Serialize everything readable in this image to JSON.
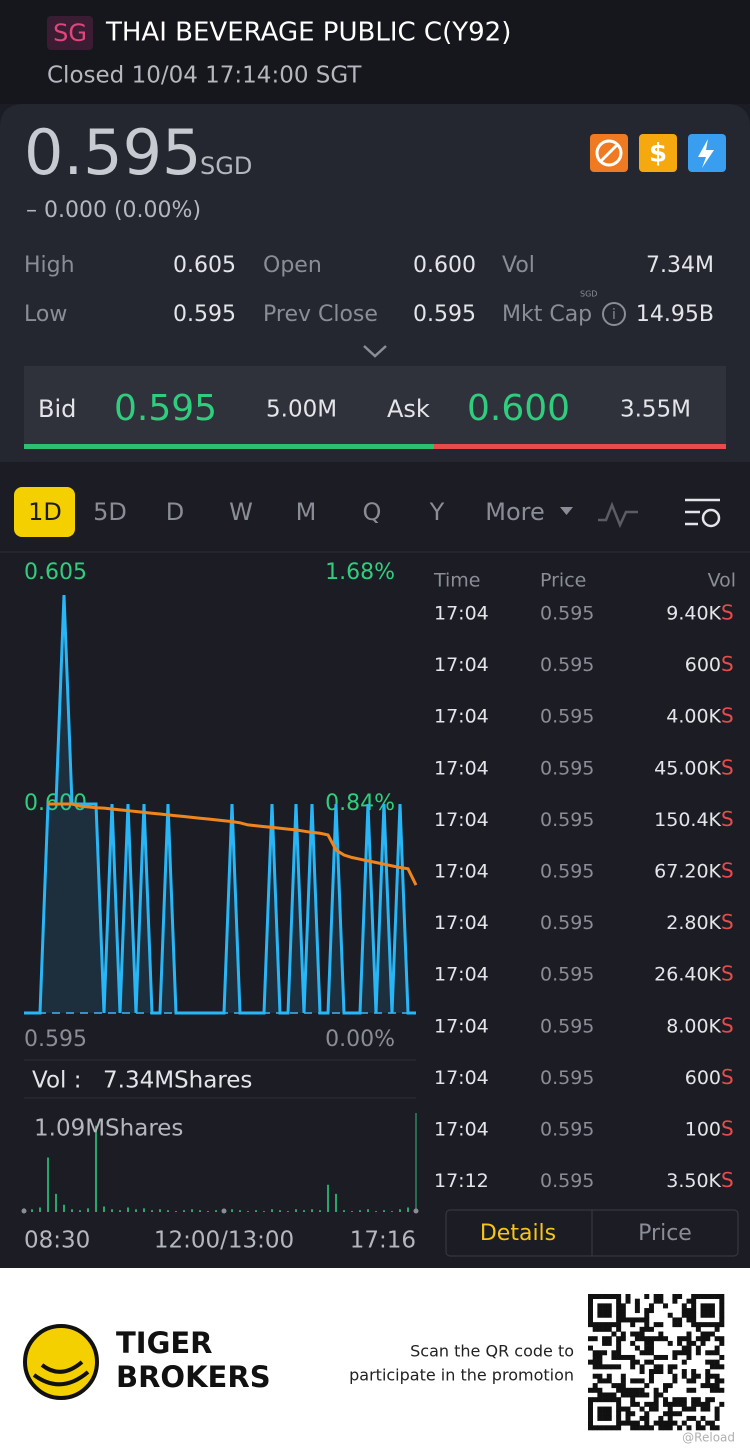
{
  "header": {
    "market": "SG",
    "title": "THAI BEVERAGE PUBLIC C(Y92)",
    "status": "Closed 10/04 17:14:00 SGT"
  },
  "quote": {
    "price": "0.595",
    "currency": "SGD",
    "change": "– 0.000 (0.00%)",
    "stats": [
      {
        "label": "High",
        "value": "0.605"
      },
      {
        "label": "Open",
        "value": "0.600"
      },
      {
        "label": "Vol",
        "value": "7.34M"
      },
      {
        "label": "Low",
        "value": "0.595"
      },
      {
        "label": "Prev Close",
        "value": "0.595"
      },
      {
        "label": "Mkt Cap",
        "value": "14.95B"
      }
    ],
    "mkt_cap_unit": "SGD",
    "bid": {
      "label": "Bid",
      "price": "0.595",
      "size": "5.00M"
    },
    "ask": {
      "label": "Ask",
      "price": "0.600",
      "size": "3.55M"
    }
  },
  "tabs": [
    "1D",
    "5D",
    "D",
    "W",
    "M",
    "Q",
    "Y",
    "More"
  ],
  "chart_data": {
    "type": "line",
    "x": [
      0,
      1,
      2,
      3,
      4,
      5,
      6,
      7,
      8,
      9,
      10,
      11,
      12,
      13,
      14,
      15,
      16,
      17,
      18,
      19,
      20,
      21,
      22,
      23,
      24,
      25,
      26,
      27,
      28,
      29,
      30,
      31,
      32,
      33,
      34,
      35,
      36,
      37,
      38,
      39,
      40,
      41,
      42,
      43,
      44,
      45,
      46,
      47,
      48,
      49
    ],
    "xlim": [
      0,
      49
    ],
    "xticks": [
      {
        "value": 0,
        "label": "08:30"
      },
      {
        "value": 25,
        "label": "12:00/13:00"
      },
      {
        "value": 49,
        "label": "17:16"
      }
    ],
    "ylim": [
      0.595,
      0.605
    ],
    "yticks": [
      0.595,
      {
        "value": 0.6,
        "label": "0.600"
      },
      0.605
    ],
    "pct_labels": [
      "0.00%",
      "0.84%",
      "1.68%"
    ],
    "series": [
      {
        "color": "#29b6f6",
        "values": [
          0.595,
          0.595,
          0.595,
          0.6,
          0.6,
          0.605,
          0.6,
          0.6,
          0.6,
          0.6,
          0.595,
          0.6,
          0.595,
          0.6,
          0.595,
          0.6,
          0.595,
          0.595,
          0.6,
          0.595,
          0.595,
          0.595,
          0.595,
          0.595,
          0.595,
          0.595,
          0.6,
          0.595,
          0.595,
          0.595,
          0.595,
          0.6,
          0.595,
          0.595,
          0.6,
          0.595,
          0.6,
          0.595,
          0.595,
          0.6,
          0.595,
          0.595,
          0.595,
          0.6,
          0.595,
          0.6,
          0.595,
          0.6,
          0.595,
          0.595
        ]
      },
      {
        "color": "#f0851e",
        "values": [
          null,
          null,
          null,
          0.6,
          0.6,
          0.6,
          0.6,
          0.59995,
          0.59993,
          0.59991,
          0.5999,
          0.59988,
          0.59986,
          0.59984,
          0.59982,
          0.5998,
          0.59978,
          0.59976,
          0.59974,
          0.59972,
          0.5997,
          0.59968,
          0.59966,
          0.59964,
          0.59962,
          0.5996,
          0.59958,
          0.59955,
          0.5995,
          0.59948,
          0.59946,
          0.59944,
          0.59942,
          0.5994,
          0.59938,
          0.59935,
          0.59932,
          0.5993,
          0.59926,
          0.5989,
          0.59878,
          0.59872,
          0.59868,
          0.59864,
          0.5986,
          0.59856,
          0.59852,
          0.59848,
          0.59845,
          0.59806
        ]
      }
    ],
    "volume_label": "Vol :",
    "volume_total": "7.34MShares",
    "volume": {
      "color": "#26a86a",
      "ylim": [
        0,
        1090000
      ],
      "max_label": "1.09MShares",
      "values": [
        40000,
        30000,
        50000,
        600000,
        200000,
        80000,
        30000,
        20000,
        40000,
        950000,
        60000,
        30000,
        20000,
        50000,
        30000,
        40000,
        20000,
        30000,
        20000,
        10000,
        20000,
        30000,
        20000,
        10000,
        20000,
        10000,
        30000,
        20000,
        10000,
        20000,
        10000,
        30000,
        20000,
        10000,
        30000,
        20000,
        30000,
        20000,
        300000,
        200000,
        20000,
        10000,
        20000,
        30000,
        10000,
        20000,
        10000,
        30000,
        50000,
        1090000
      ]
    }
  },
  "trades": {
    "headers": [
      "Time",
      "Price",
      "Vol"
    ],
    "rows": [
      [
        "17:04",
        "0.595",
        "9.40K",
        "S"
      ],
      [
        "17:04",
        "0.595",
        "600",
        "S"
      ],
      [
        "17:04",
        "0.595",
        "4.00K",
        "S"
      ],
      [
        "17:04",
        "0.595",
        "45.00K",
        "S"
      ],
      [
        "17:04",
        "0.595",
        "150.4K",
        "S"
      ],
      [
        "17:04",
        "0.595",
        "67.20K",
        "S"
      ],
      [
        "17:04",
        "0.595",
        "2.80K",
        "S"
      ],
      [
        "17:04",
        "0.595",
        "26.40K",
        "S"
      ],
      [
        "17:04",
        "0.595",
        "8.00K",
        "S"
      ],
      [
        "17:04",
        "0.595",
        "600",
        "S"
      ],
      [
        "17:04",
        "0.595",
        "100",
        "S"
      ],
      [
        "17:12",
        "0.595",
        "3.50K",
        "S"
      ]
    ],
    "buttons": [
      "Details",
      "Price"
    ]
  },
  "footer": {
    "brand": [
      "TIGER",
      "BROKERS"
    ],
    "promo": [
      "Scan the QR code to",
      "participate in the promotion"
    ],
    "watermark": "@Reload"
  }
}
